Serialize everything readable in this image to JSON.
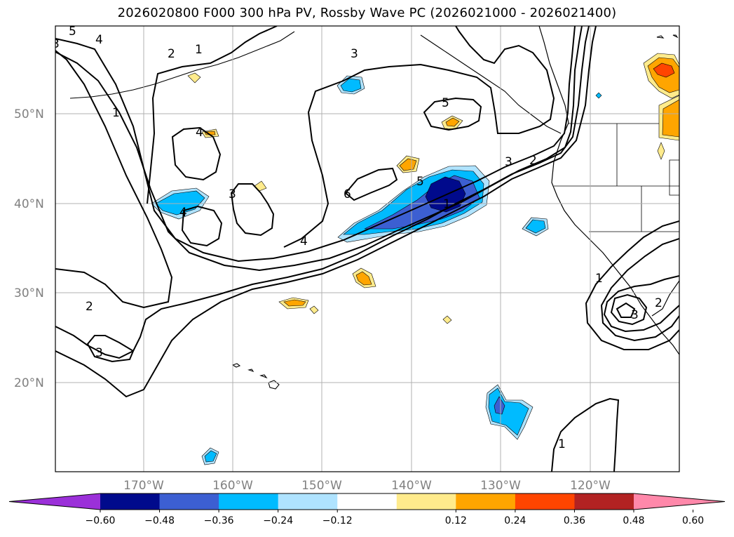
{
  "title": "2026020800 F000 300 hPa PV, Rossby Wave PC (2026021000 - 2026021400)",
  "lat_labels": [
    "50°N",
    "40°N",
    "30°N",
    "20°N"
  ],
  "lon_labels": [
    "170°W",
    "160°W",
    "150°W",
    "140°W",
    "130°W",
    "120°W"
  ],
  "colorbar": {
    "ticks": [
      "−0.60",
      "−0.48",
      "−0.36",
      "−0.24",
      "−0.12",
      "0.12",
      "0.24",
      "0.36",
      "0.48",
      "0.60"
    ],
    "colors": [
      "#9b30d9",
      "#000a8c",
      "#3c5fd2",
      "#00bbff",
      "#afe3ff",
      "#ffffff",
      "#ffeb8c",
      "#ffa500",
      "#ff4500",
      "#b22222",
      "#ff88aa"
    ]
  },
  "contour_labels": [
    "5",
    "4",
    "3",
    "2",
    "1",
    "1",
    "4",
    "3",
    "4",
    "3",
    "4",
    "5",
    "6",
    "5",
    "3",
    "2",
    "1",
    "2",
    "3",
    "1",
    "2",
    "3",
    "1"
  ]
}
